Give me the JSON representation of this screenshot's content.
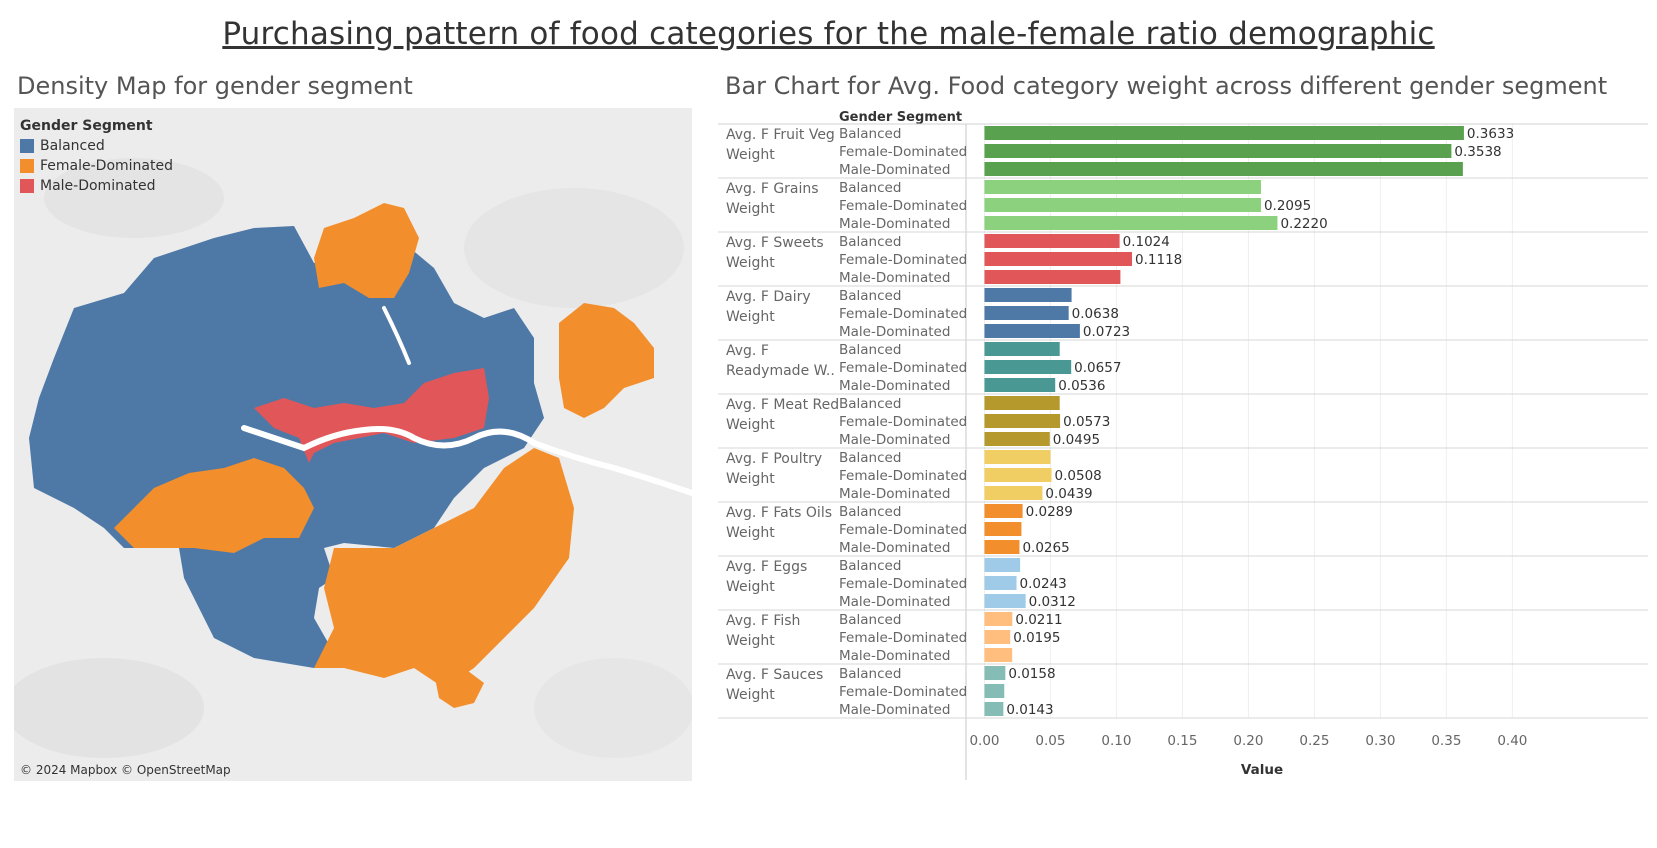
{
  "title": "Purchasing pattern of food categories for the male-female ratio demographic",
  "map": {
    "subtitle": "Density Map for gender segment",
    "legend_title": "Gender Segment",
    "legend": [
      {
        "label": "Balanced",
        "color": "#4e79a7"
      },
      {
        "label": "Female-Dominated",
        "color": "#f28e2b"
      },
      {
        "label": "Male-Dominated",
        "color": "#e15759"
      }
    ],
    "attribution": "© 2024 Mapbox © OpenStreetMap"
  },
  "chart_data": {
    "type": "bar",
    "orientation": "horizontal",
    "title": "Bar Chart for Avg. Food category weight across different gender segment",
    "row_header": "Gender Segment",
    "segments": [
      "Balanced",
      "Female-Dominated",
      "Male-Dominated"
    ],
    "xlabel": "Value",
    "xlim": [
      -0.014,
      0.427
    ],
    "xticks": [
      "0.00",
      "0.05",
      "0.10",
      "0.15",
      "0.20",
      "0.25",
      "0.30",
      "0.35",
      "0.40"
    ],
    "xtick_values": [
      0,
      0.05,
      0.1,
      0.15,
      0.2,
      0.25,
      0.3,
      0.35,
      0.4
    ],
    "groups": [
      {
        "label_lines": [
          "Avg. F Fruit Veg",
          "Weight"
        ],
        "color": "#59a14f",
        "values": [
          0.3633,
          0.3538,
          0.3625
        ],
        "labels": [
          "0.3633",
          "0.3538",
          ""
        ]
      },
      {
        "label_lines": [
          "Avg. F Grains",
          "Weight"
        ],
        "color": "#8cd17d",
        "values": [
          0.2095,
          0.2095,
          0.222
        ],
        "labels": [
          "",
          "0.2095",
          "0.2220"
        ]
      },
      {
        "label_lines": [
          "Avg. F Sweets",
          "Weight"
        ],
        "color": "#e15759",
        "values": [
          0.1024,
          0.1118,
          0.103
        ],
        "labels": [
          "0.1024",
          "0.1118",
          ""
        ]
      },
      {
        "label_lines": [
          "Avg. F Dairy",
          "Weight"
        ],
        "color": "#4e79a7",
        "values": [
          0.066,
          0.0638,
          0.0723
        ],
        "labels": [
          "",
          "0.0638",
          "0.0723"
        ]
      },
      {
        "label_lines": [
          "Avg. F",
          "Readymade W.."
        ],
        "color": "#499894",
        "values": [
          0.057,
          0.0657,
          0.0536
        ],
        "labels": [
          "",
          "0.0657",
          "0.0536"
        ]
      },
      {
        "label_lines": [
          "Avg. F Meat Red",
          "Weight"
        ],
        "color": "#b6992d",
        "values": [
          0.057,
          0.0573,
          0.0495
        ],
        "labels": [
          "",
          "0.0573",
          "0.0495"
        ]
      },
      {
        "label_lines": [
          "Avg. F Poultry",
          "Weight"
        ],
        "color": "#f1ce63",
        "values": [
          0.05,
          0.0508,
          0.0439
        ],
        "labels": [
          "",
          "0.0508",
          "0.0439"
        ]
      },
      {
        "label_lines": [
          "Avg. F Fats Oils",
          "Weight"
        ],
        "color": "#f28e2b",
        "values": [
          0.0289,
          0.028,
          0.0265
        ],
        "labels": [
          "0.0289",
          "",
          "0.0265"
        ]
      },
      {
        "label_lines": [
          "Avg. F Eggs",
          "Weight"
        ],
        "color": "#a0cbe8",
        "values": [
          0.027,
          0.0243,
          0.0312
        ],
        "labels": [
          "",
          "0.0243",
          "0.0312"
        ]
      },
      {
        "label_lines": [
          "Avg. F Fish",
          "Weight"
        ],
        "color": "#ffbe7d",
        "values": [
          0.0211,
          0.0195,
          0.021
        ],
        "labels": [
          "0.0211",
          "0.0195",
          ""
        ]
      },
      {
        "label_lines": [
          "Avg. F Sauces",
          "Weight"
        ],
        "color": "#86bcb6",
        "values": [
          0.0158,
          0.015,
          0.0143
        ],
        "labels": [
          "0.0158",
          "",
          "0.0143"
        ]
      }
    ]
  }
}
